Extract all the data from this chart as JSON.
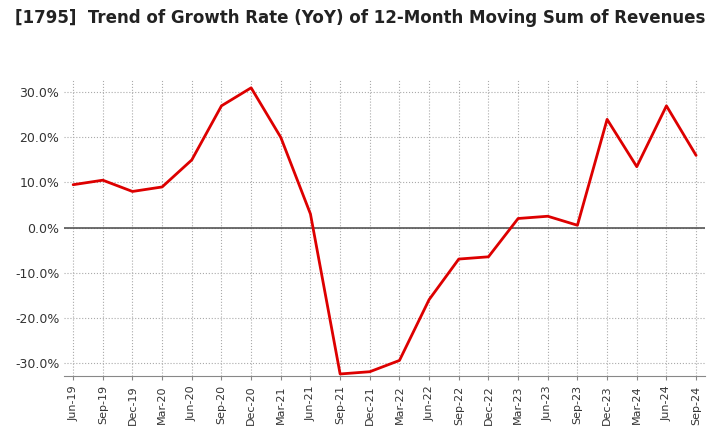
{
  "title": "[1795]  Trend of Growth Rate (YoY) of 12-Month Moving Sum of Revenues",
  "title_fontsize": 12,
  "title_color": "#222222",
  "line_color": "#dd0000",
  "line_width": 2.0,
  "background_color": "#ffffff",
  "grid_color": "#aaaaaa",
  "grid_style": ":",
  "zero_line_color": "#555555",
  "ylim": [
    -33,
    33
  ],
  "yticks": [
    -30,
    -20,
    -10,
    0,
    10,
    20,
    30
  ],
  "x_labels": [
    "Jun-19",
    "Sep-19",
    "Dec-19",
    "Mar-20",
    "Jun-20",
    "Sep-20",
    "Dec-20",
    "Mar-21",
    "Jun-21",
    "Sep-21",
    "Dec-21",
    "Mar-22",
    "Jun-22",
    "Sep-22",
    "Dec-22",
    "Mar-23",
    "Jun-23",
    "Sep-23",
    "Dec-23",
    "Mar-24",
    "Jun-24",
    "Sep-24"
  ],
  "y_values": [
    9.5,
    10.5,
    8.0,
    9.0,
    15.0,
    27.0,
    31.0,
    20.0,
    3.0,
    -32.5,
    -32.0,
    -29.5,
    -16.0,
    -7.0,
    -6.5,
    2.0,
    2.5,
    0.5,
    24.0,
    13.5,
    27.0,
    16.0
  ]
}
